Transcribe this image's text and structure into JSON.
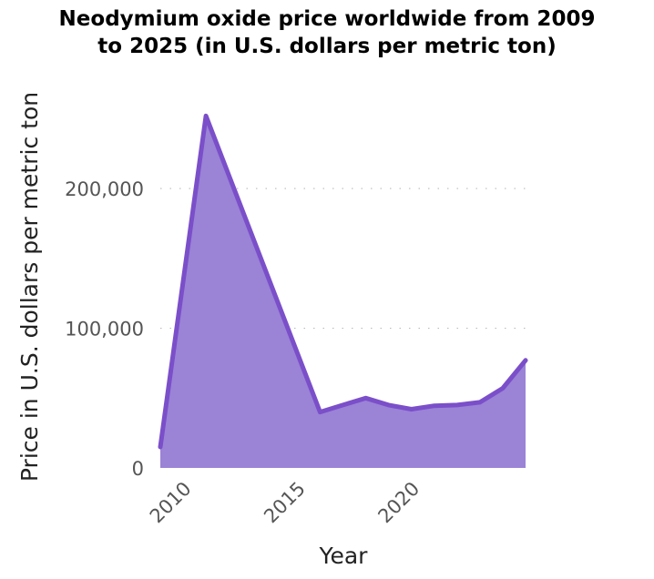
{
  "chart_data": {
    "type": "area",
    "title_lines": [
      "Neodymium oxide price worldwide from 2009",
      "to 2025 (in U.S. dollars per metric ton)"
    ],
    "xlabel": "Year",
    "ylabel": "Price in U.S. dollars per metric ton",
    "x": [
      2009,
      2011,
      2016,
      2017,
      2018,
      2019,
      2020,
      2021,
      2022,
      2023,
      2024,
      2025
    ],
    "series": [
      {
        "values": [
          15000,
          252000,
          40000,
          45000,
          50000,
          45000,
          42000,
          44500,
          45000,
          47000,
          57000,
          77000
        ]
      }
    ],
    "xlim": [
      2009,
      2025
    ],
    "ylim": [
      0,
      260000
    ],
    "x_ticks": [
      {
        "value": 2010,
        "label": "2010"
      },
      {
        "value": 2015,
        "label": "2015"
      },
      {
        "value": 2020,
        "label": "2020"
      }
    ],
    "y_ticks": [
      {
        "value": 0,
        "label": "0"
      },
      {
        "value": 100000,
        "label": "100,000"
      },
      {
        "value": 200000,
        "label": "200,000"
      }
    ],
    "grid": "horizontal dotted",
    "colors": {
      "line": "#7b4fc9",
      "fill": "#9b83d6",
      "grid": "#bbbbbb"
    }
  }
}
